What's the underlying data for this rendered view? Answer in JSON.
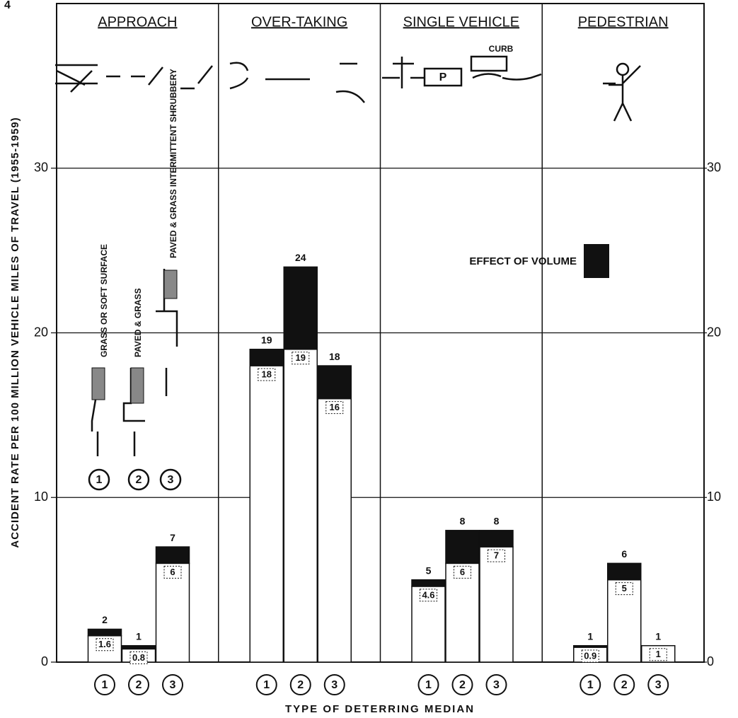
{
  "page_number": "4",
  "chart_data": {
    "type": "bar",
    "y_label": "ACCIDENT RATE PER 100 MILLION VEHICLE MILES OF TRAVEL (1955-1959)",
    "x_label": "TYPE OF DETERRING MEDIAN",
    "groups": [
      "APPROACH",
      "OVER-TAKING",
      "SINGLE VEHICLE",
      "PEDESTRIAN"
    ],
    "categories": [
      "1",
      "2",
      "3",
      "1",
      "2",
      "3",
      "1",
      "2",
      "3",
      "1",
      "2",
      "3"
    ],
    "series": [
      {
        "color": "#ffffff",
        "values": [
          1.6,
          0.8,
          6,
          18,
          19,
          16,
          4.6,
          6,
          7,
          0.9,
          5,
          1
        ]
      },
      {
        "name": "EFFECT OF VOLUME",
        "color": "#111111",
        "values": [
          0.4,
          0.2,
          1,
          1,
          5,
          2,
          0.4,
          2,
          1,
          0.1,
          1,
          0
        ]
      }
    ],
    "totals": [
      2,
      1,
      7,
      19,
      24,
      18,
      5,
      8,
      8,
      1,
      6,
      1
    ],
    "ylim": [
      0,
      40
    ],
    "yticks": [
      0,
      10,
      20,
      30
    ],
    "grid": true,
    "median_labels": [
      "GRASS OR SOFT SURFACE",
      "PAVED & GRASS",
      "PAVED & GRASS INTERMITTENT SHRUBBERY"
    ],
    "icon_labels": [
      "CURB",
      "P"
    ]
  }
}
